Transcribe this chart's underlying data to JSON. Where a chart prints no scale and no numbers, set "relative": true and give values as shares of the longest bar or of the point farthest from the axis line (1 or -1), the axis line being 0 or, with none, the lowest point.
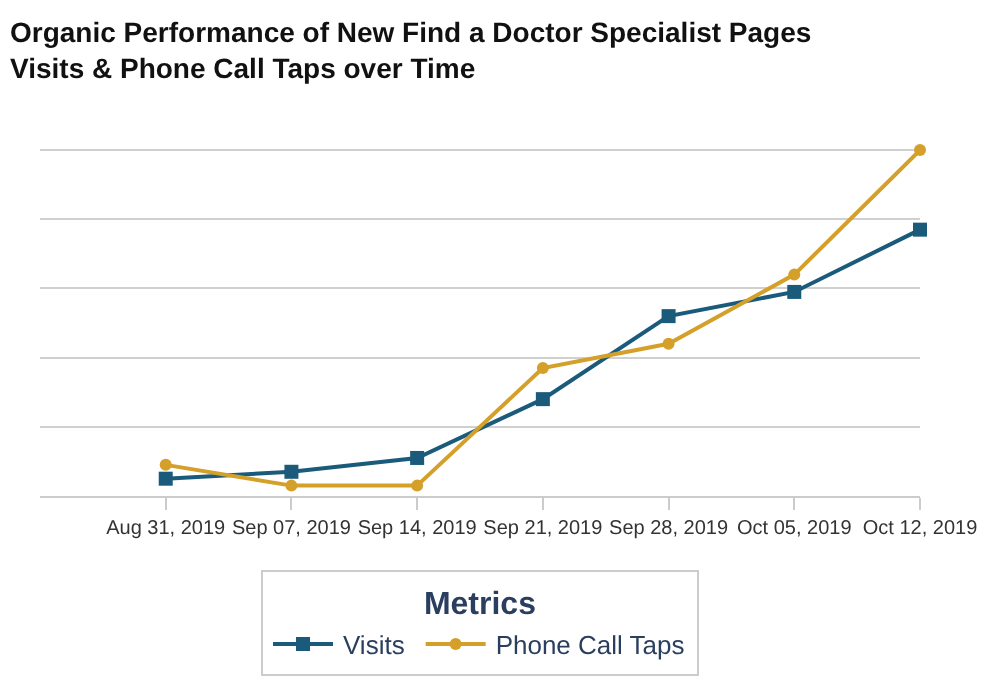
{
  "chart_data": {
    "type": "line",
    "title": "Organic Performance of New Find a Doctor Specialist Pages\nVisits & Phone Call Taps over Time",
    "x": [
      "2019-08-31",
      "2019-09-07",
      "2019-09-14",
      "2019-09-21",
      "2019-09-28",
      "2019-10-05",
      "2019-10-12"
    ],
    "xlim": [
      "2019-08-24",
      "2019-10-12"
    ],
    "xticks": [
      {
        "value": "2019-08-31",
        "label": "Aug 31, 2019"
      },
      {
        "value": "2019-09-07",
        "label": "Sep 07, 2019"
      },
      {
        "value": "2019-09-14",
        "label": "Sep 14, 2019"
      },
      {
        "value": "2019-09-21",
        "label": "Sep 21, 2019"
      },
      {
        "value": "2019-09-28",
        "label": "Sep 28, 2019"
      },
      {
        "value": "2019-10-05",
        "label": "Oct 05, 2019"
      },
      {
        "value": "2019-10-12",
        "label": "Oct 12, 2019"
      }
    ],
    "relative": true,
    "grid": "y",
    "legend": "bottom",
    "legend_title": "Metrics",
    "series": [
      {
        "name": "Visits",
        "color": "#1a5a7a",
        "marker": "square",
        "values": [
          0.05,
          0.07,
          0.11,
          0.28,
          0.52,
          0.59,
          0.77
        ]
      },
      {
        "name": "Phone Call Taps",
        "color": "#d4a02a",
        "marker": "circle",
        "values": [
          0.09,
          0.03,
          0.03,
          0.37,
          0.44,
          0.64,
          1.0
        ]
      }
    ]
  }
}
